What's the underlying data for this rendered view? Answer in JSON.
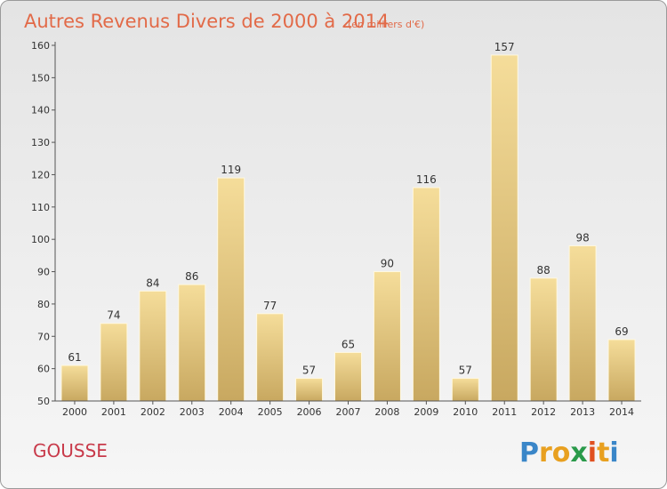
{
  "chart_data": {
    "type": "bar",
    "title": "Autres Revenus Divers de 2000 à 2014",
    "subtitle": "(en milliers d'€)",
    "categories": [
      "2000",
      "2001",
      "2002",
      "2003",
      "2004",
      "2005",
      "2006",
      "2007",
      "2008",
      "2009",
      "2010",
      "2011",
      "2012",
      "2013",
      "2014"
    ],
    "values": [
      61,
      74,
      84,
      86,
      119,
      77,
      57,
      65,
      90,
      116,
      57,
      157,
      88,
      98,
      69
    ],
    "ylim": [
      50,
      160
    ],
    "yticks": [
      50,
      60,
      70,
      80,
      90,
      100,
      110,
      120,
      130,
      140,
      150,
      160
    ],
    "grid": false,
    "bar_color": "#e6c680"
  },
  "commune": "GOUSSE",
  "logo": {
    "letters": [
      "P",
      "r",
      "o",
      "x",
      "i",
      "t",
      "i"
    ],
    "colors": [
      "#3a86c8",
      "#e8a020",
      "#e8a020",
      "#2a9a4a",
      "#e05020",
      "#e8a020",
      "#3a86c8"
    ]
  }
}
